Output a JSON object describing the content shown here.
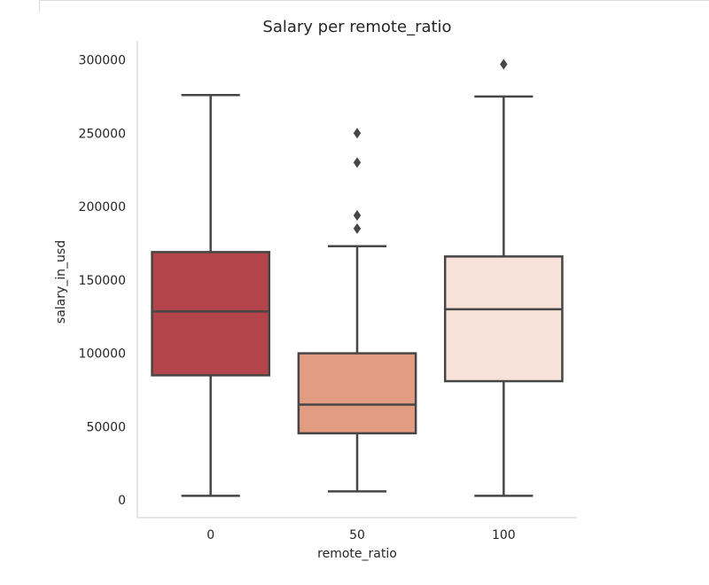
{
  "chart_data": {
    "type": "box",
    "title": "Salary per remote_ratio",
    "xlabel": "remote_ratio",
    "ylabel": "salary_in_usd",
    "ylim": [
      -12000,
      313000
    ],
    "yticks": [
      0,
      50000,
      100000,
      150000,
      200000,
      250000,
      300000
    ],
    "ytick_labels": [
      "0",
      "50000",
      "100000",
      "150000",
      "200000",
      "250000",
      "300000"
    ],
    "grid": false,
    "categories": [
      "0",
      "50",
      "100"
    ],
    "boxes": [
      {
        "category": "0",
        "whisker_low": 2859,
        "q1": 85000,
        "median": 128500,
        "q3": 169000,
        "whisker_high": 276000,
        "outliers": [],
        "color": "#b2444a"
      },
      {
        "category": "50",
        "whisker_low": 5882,
        "q1": 45500,
        "median": 65000,
        "q3": 100000,
        "whisker_high": 173000,
        "outliers": [
          185000,
          194000,
          230000,
          250000
        ],
        "color": "#e29c82"
      },
      {
        "category": "100",
        "whisker_low": 2859,
        "q1": 81000,
        "median": 130000,
        "q3": 166000,
        "whisker_high": 275000,
        "outliers": [
          297000
        ],
        "color": "#f7e1d8"
      }
    ],
    "line_color": "#464646",
    "spine_color": "#cccccc"
  }
}
